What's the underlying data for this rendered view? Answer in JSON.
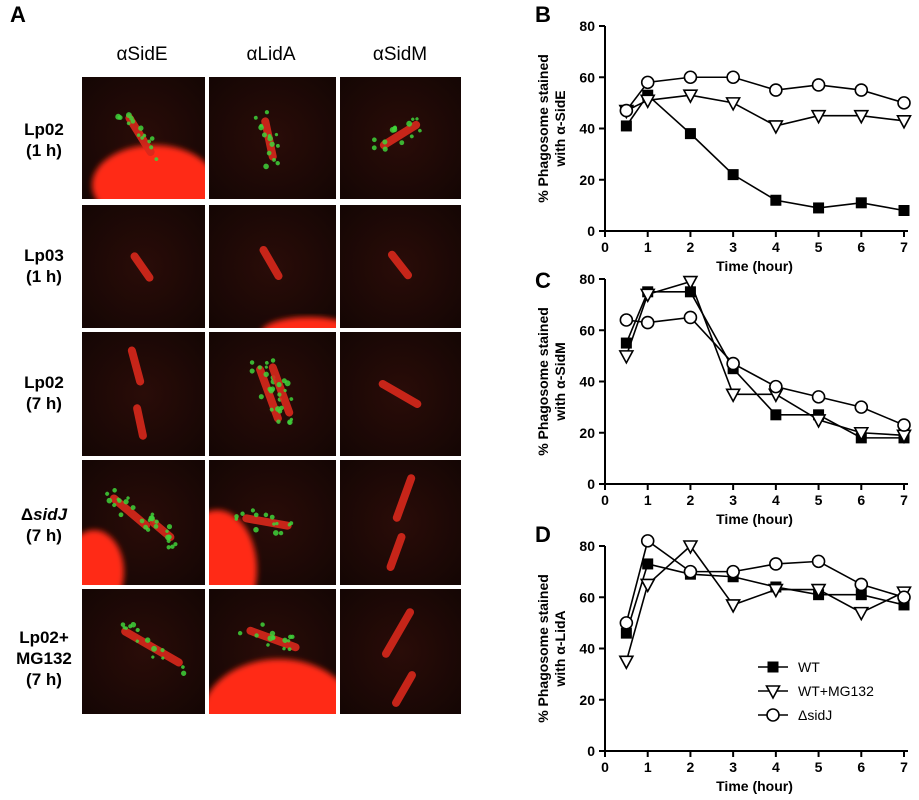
{
  "panel_letters": {
    "a": "A",
    "b": "B",
    "c": "C",
    "d": "D"
  },
  "panel_a": {
    "columns": [
      "αSidE",
      "αLidA",
      "αSidM"
    ],
    "rows": [
      {
        "name": "Lp02",
        "name_italic": "",
        "time": "(1 h)"
      },
      {
        "name": "Lp03",
        "name_italic": "",
        "time": "(1 h)"
      },
      {
        "name": "Lp02",
        "name_italic": "",
        "time": "(7 h)"
      },
      {
        "name": "Δ",
        "name_italic": "sidJ",
        "time": "(7 h)"
      },
      {
        "name": "Lp02+",
        "name_italic": "",
        "time": "MG132",
        "time2": "(7 h)"
      }
    ],
    "colors": {
      "bacterium": "#d8281c",
      "host_cell": "#ff2a12",
      "protein": "#3fd23a",
      "background": "#140604"
    }
  },
  "chart_data": [
    {
      "type": "line",
      "panel": "B",
      "xlabel": "Time (hour)",
      "ylabel": "% Phagosome stained with α-SidE",
      "ylabel_lines": [
        "% Phagosome stained",
        "with α-SidE"
      ],
      "xlim": [
        0,
        7
      ],
      "ylim": [
        0,
        80
      ],
      "xticks": [
        0,
        1,
        2,
        3,
        4,
        5,
        6,
        7
      ],
      "yticks": [
        0,
        20,
        40,
        60,
        80
      ],
      "x": [
        0.5,
        1,
        2,
        3,
        4,
        5,
        6,
        7
      ],
      "series": [
        {
          "name": "WT",
          "marker": "square-filled",
          "values": [
            41,
            53,
            38,
            22,
            12,
            9,
            11,
            8
          ]
        },
        {
          "name": "WT+MG132",
          "marker": "triangle-down-open",
          "values": [
            47,
            51,
            53,
            50,
            41,
            45,
            45,
            43
          ]
        },
        {
          "name": "ΔsidJ",
          "marker": "circle-open",
          "values": [
            47,
            58,
            60,
            60,
            55,
            57,
            55,
            50
          ]
        }
      ]
    },
    {
      "type": "line",
      "panel": "C",
      "xlabel": "Time (hour)",
      "ylabel": "% Phagosome stained with α-SidM",
      "ylabel_lines": [
        "% Phagosome stained",
        "with α-SidM"
      ],
      "xlim": [
        0,
        7
      ],
      "ylim": [
        0,
        80
      ],
      "xticks": [
        0,
        1,
        2,
        3,
        4,
        5,
        6,
        7
      ],
      "yticks": [
        0,
        20,
        40,
        60,
        80
      ],
      "x": [
        0.5,
        1,
        2,
        3,
        4,
        5,
        6,
        7
      ],
      "series": [
        {
          "name": "WT",
          "marker": "square-filled",
          "values": [
            55,
            75,
            75,
            45,
            27,
            27,
            18,
            18
          ]
        },
        {
          "name": "WT+MG132",
          "marker": "triangle-down-open",
          "values": [
            50,
            74,
            79,
            35,
            35,
            25,
            20,
            19
          ]
        },
        {
          "name": "ΔsidJ",
          "marker": "circle-open",
          "values": [
            64,
            63,
            65,
            47,
            38,
            34,
            30,
            23
          ]
        }
      ]
    },
    {
      "type": "line",
      "panel": "D",
      "xlabel": "Time (hour)",
      "ylabel": "% Phagosome stained with α-LidA",
      "ylabel_lines": [
        "% Phagosome stained",
        "with α-LidA"
      ],
      "xlim": [
        0,
        7
      ],
      "ylim": [
        0,
        80
      ],
      "xticks": [
        0,
        1,
        2,
        3,
        4,
        5,
        6,
        7
      ],
      "yticks": [
        0,
        20,
        40,
        60,
        80
      ],
      "x": [
        0.5,
        1,
        2,
        3,
        4,
        5,
        6,
        7
      ],
      "legend": {
        "placement": "bottom-right",
        "entries": [
          "WT",
          "WT+MG132",
          "ΔsidJ"
        ]
      },
      "series": [
        {
          "name": "WT",
          "marker": "square-filled",
          "values": [
            46,
            73,
            69,
            68,
            64,
            61,
            61,
            57
          ]
        },
        {
          "name": "WT+MG132",
          "marker": "triangle-down-open",
          "values": [
            35,
            65,
            80,
            57,
            63,
            63,
            54,
            62
          ]
        },
        {
          "name": "ΔsidJ",
          "marker": "circle-open",
          "values": [
            50,
            82,
            70,
            70,
            73,
            74,
            65,
            60
          ]
        }
      ]
    }
  ]
}
